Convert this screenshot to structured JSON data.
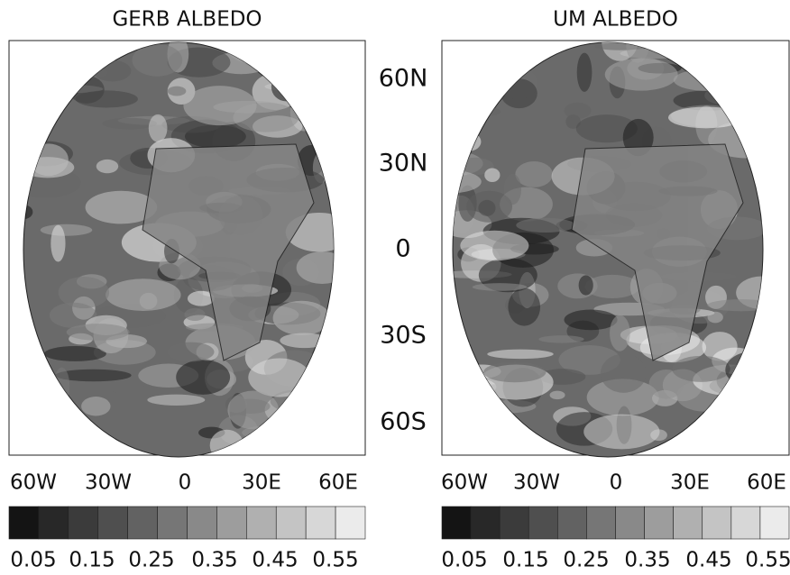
{
  "panels": [
    {
      "title": "GERB ALBEDO",
      "lon_labels": [
        "60W",
        "30W",
        "0",
        "30E",
        "60E"
      ],
      "colorbar_labels": [
        "0.05",
        "0.15",
        "0.25",
        "0.35",
        "0.45",
        "0.55"
      ]
    },
    {
      "title": "UM ALBEDO",
      "lon_labels": [
        "60W",
        "30W",
        "0",
        "30E",
        "60E"
      ],
      "colorbar_labels": [
        "0.05",
        "0.15",
        "0.25",
        "0.35",
        "0.45",
        "0.55"
      ]
    }
  ],
  "lat_labels": [
    "60N",
    "30N",
    "0",
    "30S",
    "60S"
  ]
}
